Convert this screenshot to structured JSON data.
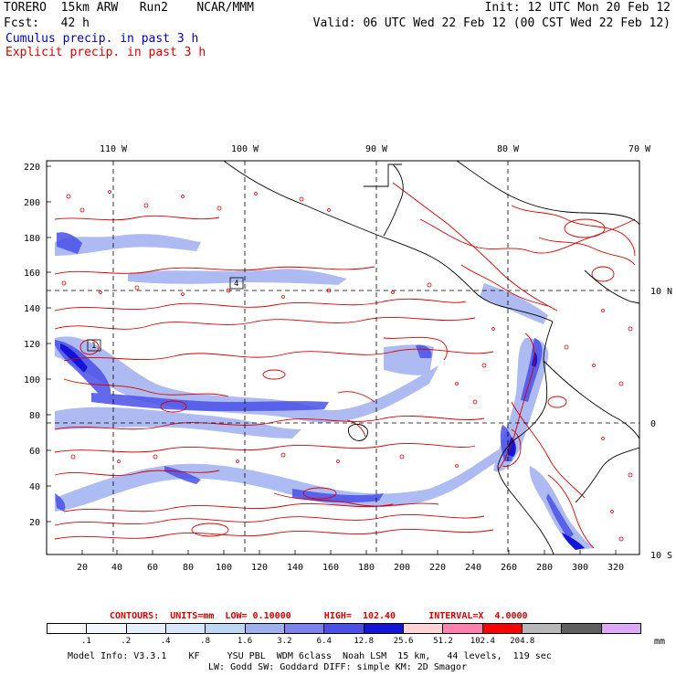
{
  "header": {
    "line1_left": "TORERO  15km ARW   Run2    NCAR/MMM",
    "line1_right": "Init: 12 UTC Mon 20 Feb 12",
    "line2_left": "Fcst:   42 h",
    "line2_right": "Valid: 06 UTC Wed 22 Feb 12 (00 CST Wed 22 Feb 12)",
    "legend_cumulus": "Cumulus precip. in past 3 h",
    "legend_explicit": "Explicit precip. in past 3 h"
  },
  "map": {
    "top_lon_labels": [
      "110 W",
      "100 W",
      "90 W",
      "80 W",
      "70 W"
    ],
    "right_lat_labels": [
      "10 N",
      "0",
      "10 S"
    ],
    "y_ticks": [
      "220",
      "200",
      "180",
      "160",
      "140",
      "120",
      "100",
      "80",
      "60",
      "40",
      "20"
    ],
    "x_ticks": [
      "20",
      "40",
      "60",
      "80",
      "100",
      "120",
      "140",
      "160",
      "180",
      "200",
      "220",
      "240",
      "260",
      "280",
      "300",
      "320"
    ],
    "box_labels": [
      "1",
      "4"
    ]
  },
  "contour_info": "CONTOURS:  UNITS=mm  LOW= 0.10000      HIGH=  102.40      INTERVAL=X  4.0000",
  "colorbar": {
    "colors": [
      "#ffffff",
      "#f4f8ff",
      "#e6f0ff",
      "#d4e8fb",
      "#bcd8f5",
      "#9fb0f0",
      "#7c82ec",
      "#4a50e8",
      "#1414d8",
      "#ffd4d8",
      "#ff80b0",
      "#ff0000",
      "#b8b8b8",
      "#606060",
      "#e0a8f8"
    ],
    "labels": [
      ".1",
      ".2",
      ".4",
      ".8",
      "1.6",
      "3.2",
      "6.4",
      "12.8",
      "25.6",
      "51.2",
      "102.4",
      "204.8"
    ],
    "unit": "mm"
  },
  "footer": {
    "line1": "Model Info: V3.3.1    KF     YSU PBL  WDM 6class  Noah LSM  15 km,   44 levels,  119 sec",
    "line2": "LW: Godd SW: Goddard DIFF: simple KM: 2D Smagor"
  },
  "colors": {
    "explicit": "#d80000",
    "cumulus": "#0000c8",
    "land_outline": "#000000"
  }
}
